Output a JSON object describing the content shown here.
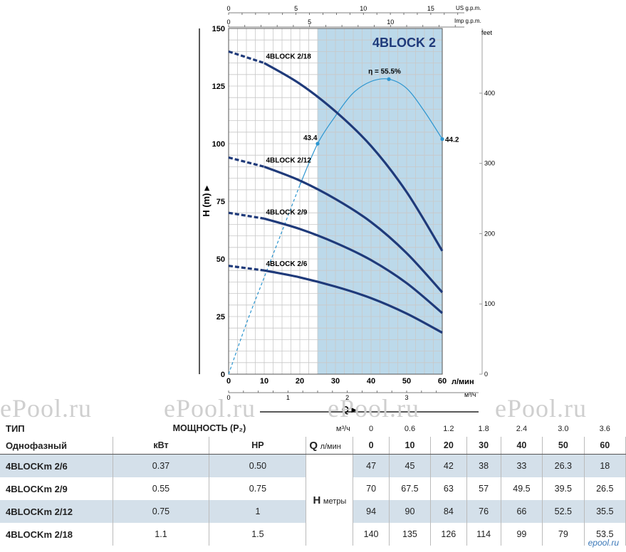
{
  "chart_data": {
    "type": "line",
    "title": "4BLOCK 2",
    "ylabel": "H (m)",
    "ylim": [
      0,
      150
    ],
    "yticks": [
      0,
      25,
      50,
      75,
      100,
      125,
      150
    ],
    "right_axis": {
      "label": "feet",
      "ticks": [
        0,
        100,
        200,
        300,
        400
      ]
    },
    "x_lmin": {
      "label": "л/мин",
      "lim": [
        0,
        60
      ],
      "ticks": [
        0,
        10,
        20,
        30,
        40,
        50,
        60
      ]
    },
    "x_m3h": {
      "label": "м³/ч",
      "ticks": [
        0,
        1,
        2,
        3
      ]
    },
    "x_imp": {
      "label": "Imp g.p.m.",
      "ticks": [
        0,
        5,
        10
      ]
    },
    "x_us": {
      "label": "US g.p.m.",
      "ticks": [
        0,
        5,
        10,
        15
      ]
    },
    "q_label": "Q",
    "recommended_range_lmin": [
      25,
      60
    ],
    "series": [
      {
        "name": "4BLOCK 2/18",
        "x": [
          0,
          10,
          20,
          30,
          40,
          50,
          60
        ],
        "values": [
          140,
          135,
          126,
          114,
          99,
          79,
          53.5
        ]
      },
      {
        "name": "4BLOCK 2/12",
        "x": [
          0,
          10,
          20,
          30,
          40,
          50,
          60
        ],
        "values": [
          94,
          90,
          84,
          76,
          66,
          52.5,
          35.5
        ]
      },
      {
        "name": "4BLOCK 2/9",
        "x": [
          0,
          10,
          20,
          30,
          40,
          50,
          60
        ],
        "values": [
          70,
          67.5,
          63,
          57,
          49.5,
          39.5,
          26.5
        ]
      },
      {
        "name": "4BLOCK 2/6",
        "x": [
          0,
          10,
          20,
          30,
          40,
          50,
          60
        ],
        "values": [
          47,
          45,
          42,
          38,
          33,
          26.3,
          18
        ]
      }
    ],
    "efficiency": {
      "x": [
        0,
        5,
        10,
        15,
        20,
        25,
        30,
        35,
        40,
        45,
        50,
        55,
        60
      ],
      "values": [
        0,
        22,
        42,
        62,
        82,
        100,
        112,
        122,
        127,
        128,
        124,
        114,
        102
      ],
      "labels": [
        {
          "x": 25,
          "text": "43.4"
        },
        {
          "x": 45,
          "text": "η = 55.5%"
        },
        {
          "x": 60,
          "text": "44.2"
        }
      ]
    },
    "colors": {
      "curve": "#1f3a7a",
      "efficiency": "#2b95d0",
      "band": "#bcd9ea",
      "title": "#1f3a7a"
    }
  },
  "watermark": "ePool.ru",
  "table": {
    "headers": {
      "type": "ТИП",
      "phase": "Однофазный",
      "power": "МОЩНОСТЬ (P₂)",
      "kw": "кВт",
      "hp": "HP",
      "q": "Q",
      "q_unit_m3h": "м³/ч",
      "q_unit_lmin": "л/мин",
      "h": "H",
      "h_unit": "метры"
    },
    "q_m3h": [
      "0",
      "0.6",
      "1.2",
      "1.8",
      "2.4",
      "3.0",
      "3.6"
    ],
    "q_lmin": [
      "0",
      "10",
      "20",
      "30",
      "40",
      "50",
      "60"
    ],
    "rows": [
      {
        "model": "4BLOCKm 2/6",
        "kw": "0.37",
        "hp": "0.50",
        "h": [
          "47",
          "45",
          "42",
          "38",
          "33",
          "26.3",
          "18"
        ]
      },
      {
        "model": "4BLOCKm 2/9",
        "kw": "0.55",
        "hp": "0.75",
        "h": [
          "70",
          "67.5",
          "63",
          "57",
          "49.5",
          "39.5",
          "26.5"
        ]
      },
      {
        "model": "4BLOCKm 2/12",
        "kw": "0.75",
        "hp": "1",
        "h": [
          "94",
          "90",
          "84",
          "76",
          "66",
          "52.5",
          "35.5"
        ]
      },
      {
        "model": "4BLOCKm 2/18",
        "kw": "1.1",
        "hp": "1.5",
        "h": [
          "140",
          "135",
          "126",
          "114",
          "99",
          "79",
          "53.5"
        ]
      }
    ]
  },
  "site_logo": "epool.ru"
}
